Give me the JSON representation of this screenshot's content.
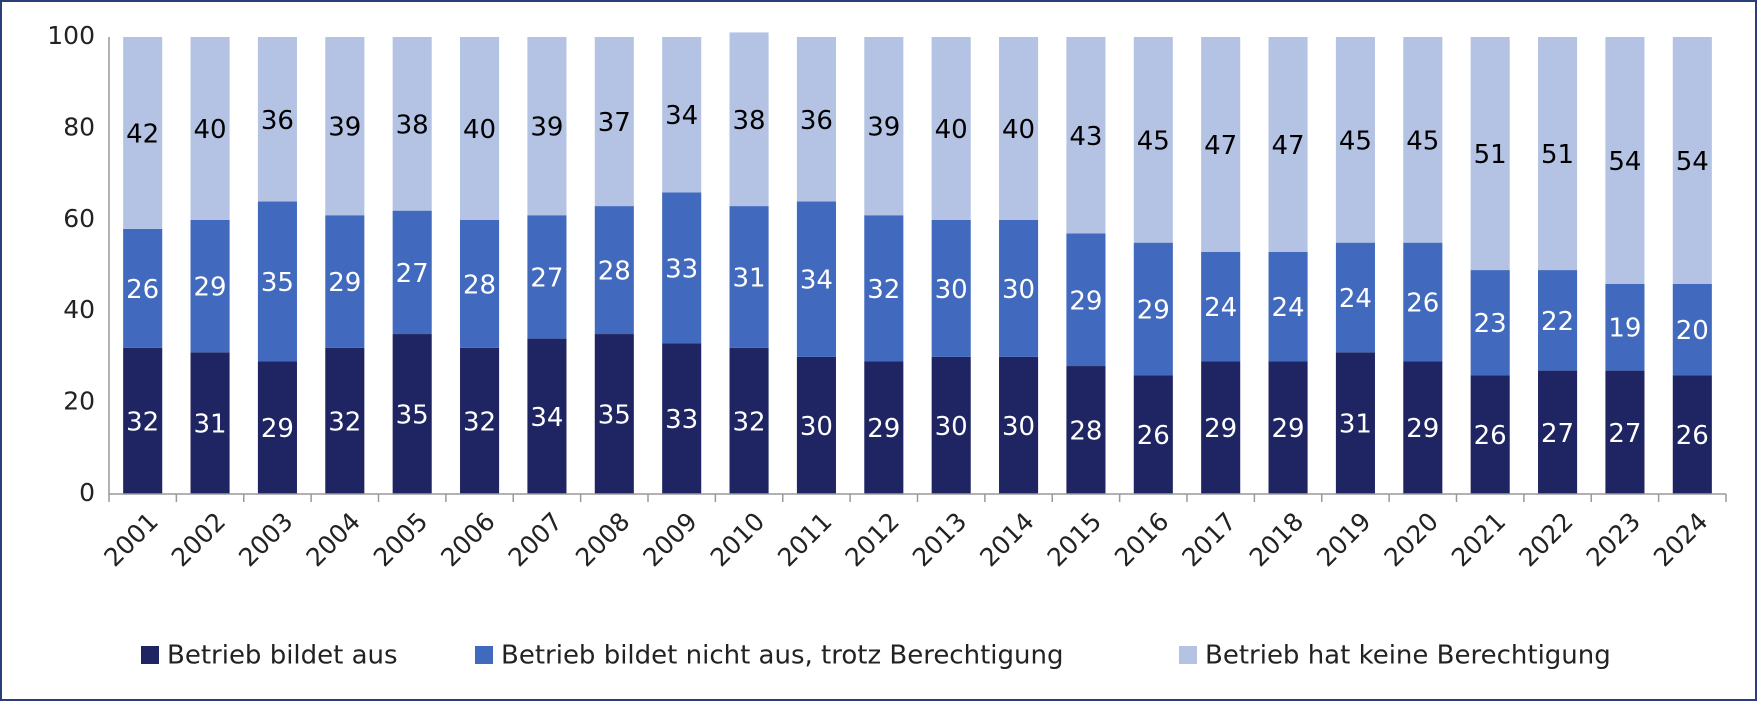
{
  "chart_data": {
    "type": "stacked_bar",
    "categories": [
      "2001",
      "2002",
      "2003",
      "2004",
      "2005",
      "2006",
      "2007",
      "2008",
      "2009",
      "2010",
      "2011",
      "2012",
      "2013",
      "2014",
      "2015",
      "2016",
      "2017",
      "2018",
      "2019",
      "2020",
      "2021",
      "2022",
      "2023",
      "2024"
    ],
    "series": [
      {
        "name": "Betrieb bildet aus",
        "color": "#1f2562",
        "label_color": "#ffffff",
        "values": [
          32,
          31,
          29,
          32,
          35,
          32,
          34,
          35,
          33,
          32,
          30,
          29,
          30,
          30,
          28,
          26,
          29,
          29,
          31,
          29,
          26,
          27,
          27,
          26
        ]
      },
      {
        "name": "Betrieb bildet nicht aus, trotz Berechtigung",
        "color": "#4169bd",
        "label_color": "#ffffff",
        "values": [
          26,
          29,
          35,
          29,
          27,
          28,
          27,
          28,
          33,
          31,
          34,
          32,
          30,
          30,
          29,
          29,
          24,
          24,
          24,
          26,
          23,
          22,
          19,
          20
        ]
      },
      {
        "name": "Betrieb hat keine Berechtigung",
        "color": "#b4c3e3",
        "label_color": "#000000",
        "values": [
          42,
          40,
          36,
          39,
          38,
          40,
          39,
          37,
          34,
          38,
          36,
          39,
          40,
          40,
          43,
          45,
          47,
          47,
          45,
          45,
          51,
          51,
          54,
          54
        ]
      }
    ],
    "ylim": [
      0,
      100
    ],
    "yticks": [
      0,
      20,
      40,
      60,
      80,
      100
    ],
    "grid": false,
    "legend": "bottom"
  }
}
